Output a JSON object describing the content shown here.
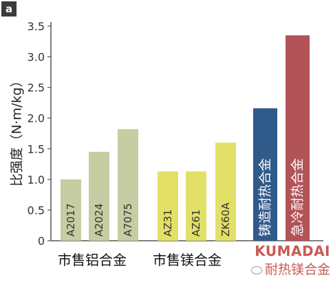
{
  "panel_label": "a",
  "group_labels": [
    "市售铝合金",
    "市售镁合金"
  ],
  "watermark": {
    "brand": "KUMADAI",
    "text": "耐热镁合金"
  },
  "colors": {
    "aluminum": "#c5cda2",
    "magnesium": "#e3e067",
    "cast": "#2f5a8a",
    "quench": "#b25358",
    "axis": "#555555"
  },
  "chart_data": {
    "type": "bar",
    "ylabel": "比强度（N·m/kg）",
    "ylim": [
      0,
      3.5
    ],
    "yticks": [
      "0",
      "0.5",
      "1.0",
      "1.5",
      "2.0",
      "2.5",
      "3.0",
      "3.5"
    ],
    "grid": false,
    "categories": [
      "A2017",
      "A2024",
      "A7075",
      "AZ31",
      "AZ61",
      "ZK60A",
      "铸造耐热合金",
      "急冷耐热合金"
    ],
    "values": [
      1.0,
      1.45,
      1.82,
      1.13,
      1.13,
      1.6,
      2.16,
      3.35
    ],
    "groups": [
      "市售铝合金",
      "市售铝合金",
      "市售铝合金",
      "市售镁合金",
      "市售镁合金",
      "市售镁合金",
      "",
      ""
    ]
  }
}
